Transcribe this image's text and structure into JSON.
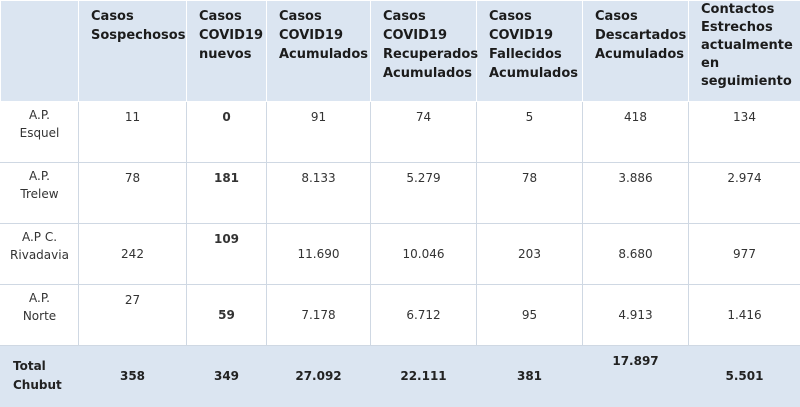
{
  "headers": [
    "",
    "Casos\nSospechosos",
    "Casos\nCOVID19\nnuevos",
    "Casos\nCOVID19\nAcumulados",
    "Casos\nCOVID19\nRecuperados\nAcumulados",
    "Casos\nCOVID19\nFallecidos\nAcumulados",
    "Casos\nDescartados\nAcumulados",
    "Contactos\nEstrechos\nactualmente\nen\nseguimiento"
  ],
  "rows": [
    {
      "label": "A.P.\nEsquel",
      "values": [
        "11",
        "0",
        "91",
        "74",
        "5",
        "418",
        "134"
      ]
    },
    {
      "label": "A.P.\nTrelew",
      "values": [
        "78",
        "181",
        "8.133",
        "5.279",
        "78",
        "3.886",
        "2.974"
      ]
    },
    {
      "label": "A.P C.\nRivadavia",
      "values": [
        "242",
        "109",
        "11.690",
        "10.046",
        "203",
        "8.680",
        "977"
      ]
    },
    {
      "label": "A.P.\nNorte",
      "values": [
        "27",
        "59",
        "7.178",
        "6.712",
        "95",
        "4.913",
        "1.416"
      ]
    }
  ],
  "total": {
    "label": "Total\nChubut",
    "values": [
      "358",
      "349",
      "27.092",
      "22.111",
      "381",
      "17.897",
      "5.501"
    ]
  },
  "colors": {
    "header_bg": "#dbe5f1",
    "grid_line": "#cfd8e3"
  }
}
